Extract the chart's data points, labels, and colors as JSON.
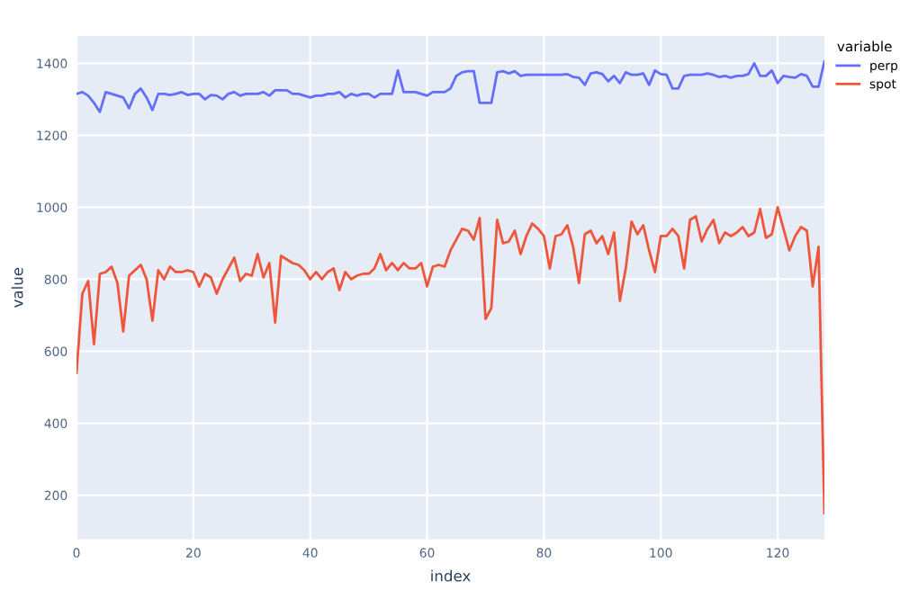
{
  "chart_data": {
    "type": "line",
    "xlabel": "index",
    "ylabel": "value",
    "legend_title": "variable",
    "legend": "right",
    "grid": true,
    "x": [
      0,
      1,
      2,
      3,
      4,
      5,
      6,
      7,
      8,
      9,
      10,
      11,
      12,
      13,
      14,
      15,
      16,
      17,
      18,
      19,
      20,
      21,
      22,
      23,
      24,
      25,
      26,
      27,
      28,
      29,
      30,
      31,
      32,
      33,
      34,
      35,
      36,
      37,
      38,
      39,
      40,
      41,
      42,
      43,
      44,
      45,
      46,
      47,
      48,
      49,
      50,
      51,
      52,
      53,
      54,
      55,
      56,
      57,
      58,
      59,
      60,
      61,
      62,
      63,
      64,
      65,
      66,
      67,
      68,
      69,
      70,
      71,
      72,
      73,
      74,
      75,
      76,
      77,
      78,
      79,
      80,
      81,
      82,
      83,
      84,
      85,
      86,
      87,
      88,
      89,
      90,
      91,
      92,
      93,
      94,
      95,
      96,
      97,
      98,
      99,
      100,
      101,
      102,
      103,
      104,
      105,
      106,
      107,
      108,
      109,
      110,
      111,
      112,
      113,
      114,
      115,
      116,
      117,
      118,
      119,
      120,
      121,
      122,
      123,
      124,
      125,
      126,
      127,
      128
    ],
    "xlim": [
      0,
      128
    ],
    "xticks": [
      0,
      20,
      40,
      60,
      80,
      100,
      120
    ],
    "ylim": [
      78,
      1476
    ],
    "yticks": [
      200,
      400,
      600,
      800,
      1000,
      1200,
      1400
    ],
    "series": [
      {
        "name": "perp",
        "color": "#636efa",
        "values": [
          1315,
          1320,
          1310,
          1290,
          1265,
          1320,
          1315,
          1310,
          1305,
          1275,
          1315,
          1330,
          1305,
          1270,
          1315,
          1315,
          1312,
          1315,
          1320,
          1312,
          1315,
          1315,
          1300,
          1312,
          1310,
          1300,
          1315,
          1320,
          1310,
          1315,
          1315,
          1315,
          1320,
          1310,
          1325,
          1325,
          1325,
          1315,
          1315,
          1310,
          1305,
          1310,
          1310,
          1315,
          1315,
          1320,
          1305,
          1315,
          1310,
          1315,
          1315,
          1305,
          1315,
          1315,
          1315,
          1380,
          1320,
          1320,
          1320,
          1315,
          1310,
          1320,
          1320,
          1320,
          1330,
          1365,
          1375,
          1378,
          1378,
          1290,
          1290,
          1290,
          1375,
          1378,
          1372,
          1378,
          1365,
          1368,
          1368,
          1368,
          1368,
          1368,
          1368,
          1368,
          1370,
          1362,
          1360,
          1340,
          1372,
          1375,
          1370,
          1350,
          1365,
          1345,
          1375,
          1368,
          1368,
          1372,
          1340,
          1380,
          1370,
          1368,
          1330,
          1330,
          1365,
          1368,
          1368,
          1368,
          1372,
          1368,
          1362,
          1365,
          1360,
          1365,
          1365,
          1370,
          1400,
          1365,
          1365,
          1380,
          1345,
          1365,
          1362,
          1360,
          1370,
          1365,
          1335,
          1335,
          1405
        ]
      },
      {
        "name": "spot",
        "color": "#ef553b",
        "values": [
          540,
          760,
          795,
          620,
          815,
          820,
          835,
          790,
          655,
          810,
          825,
          840,
          800,
          685,
          825,
          800,
          835,
          820,
          820,
          825,
          820,
          780,
          815,
          805,
          760,
          800,
          830,
          860,
          795,
          815,
          810,
          870,
          805,
          845,
          680,
          865,
          855,
          845,
          840,
          825,
          800,
          820,
          800,
          820,
          830,
          770,
          820,
          800,
          810,
          815,
          815,
          830,
          870,
          825,
          845,
          825,
          845,
          830,
          830,
          845,
          780,
          835,
          840,
          835,
          880,
          910,
          940,
          935,
          910,
          970,
          690,
          720,
          965,
          900,
          905,
          935,
          870,
          920,
          955,
          940,
          920,
          830,
          920,
          925,
          950,
          890,
          790,
          925,
          935,
          900,
          920,
          870,
          930,
          740,
          830,
          960,
          925,
          950,
          880,
          820,
          920,
          920,
          940,
          920,
          830,
          965,
          975,
          905,
          940,
          965,
          900,
          930,
          920,
          930,
          945,
          920,
          930,
          995,
          915,
          925,
          1000,
          940,
          880,
          920,
          945,
          935,
          780,
          890,
          150
        ]
      }
    ]
  }
}
